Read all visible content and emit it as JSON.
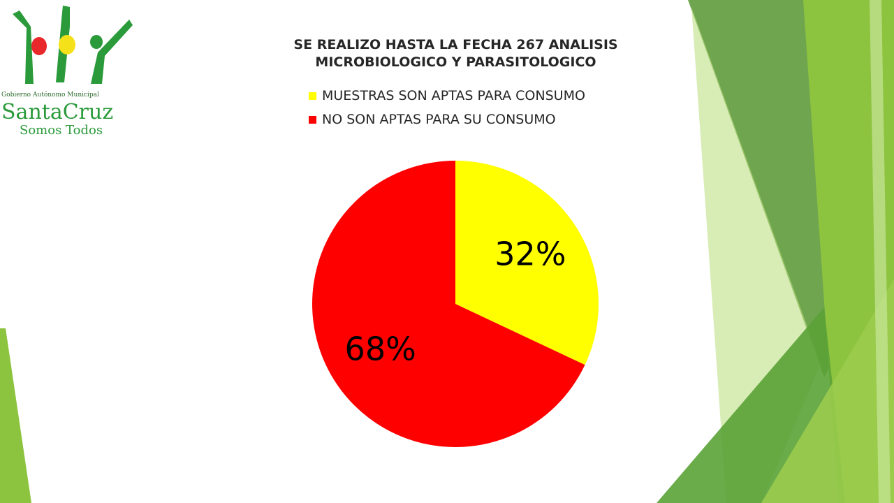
{
  "logo": {
    "line1": "Gobierno Autónomo Municipal",
    "line2": "SantaCruz",
    "line3": "Somos Todos"
  },
  "chart_data": {
    "type": "pie",
    "title": "SE REALIZO HASTA LA FECHA 267 ANALISIS MICROBIOLOGICO Y PARASITOLOGICO",
    "categories": [
      "MUESTRAS SON APTAS PARA CONSUMO",
      "NO SON APTAS PARA SU CONSUMO"
    ],
    "values": [
      32,
      68
    ],
    "labels": [
      "32%",
      "68%"
    ],
    "colors": [
      "#FFFF00",
      "#FF0000"
    ],
    "legend": "top"
  }
}
